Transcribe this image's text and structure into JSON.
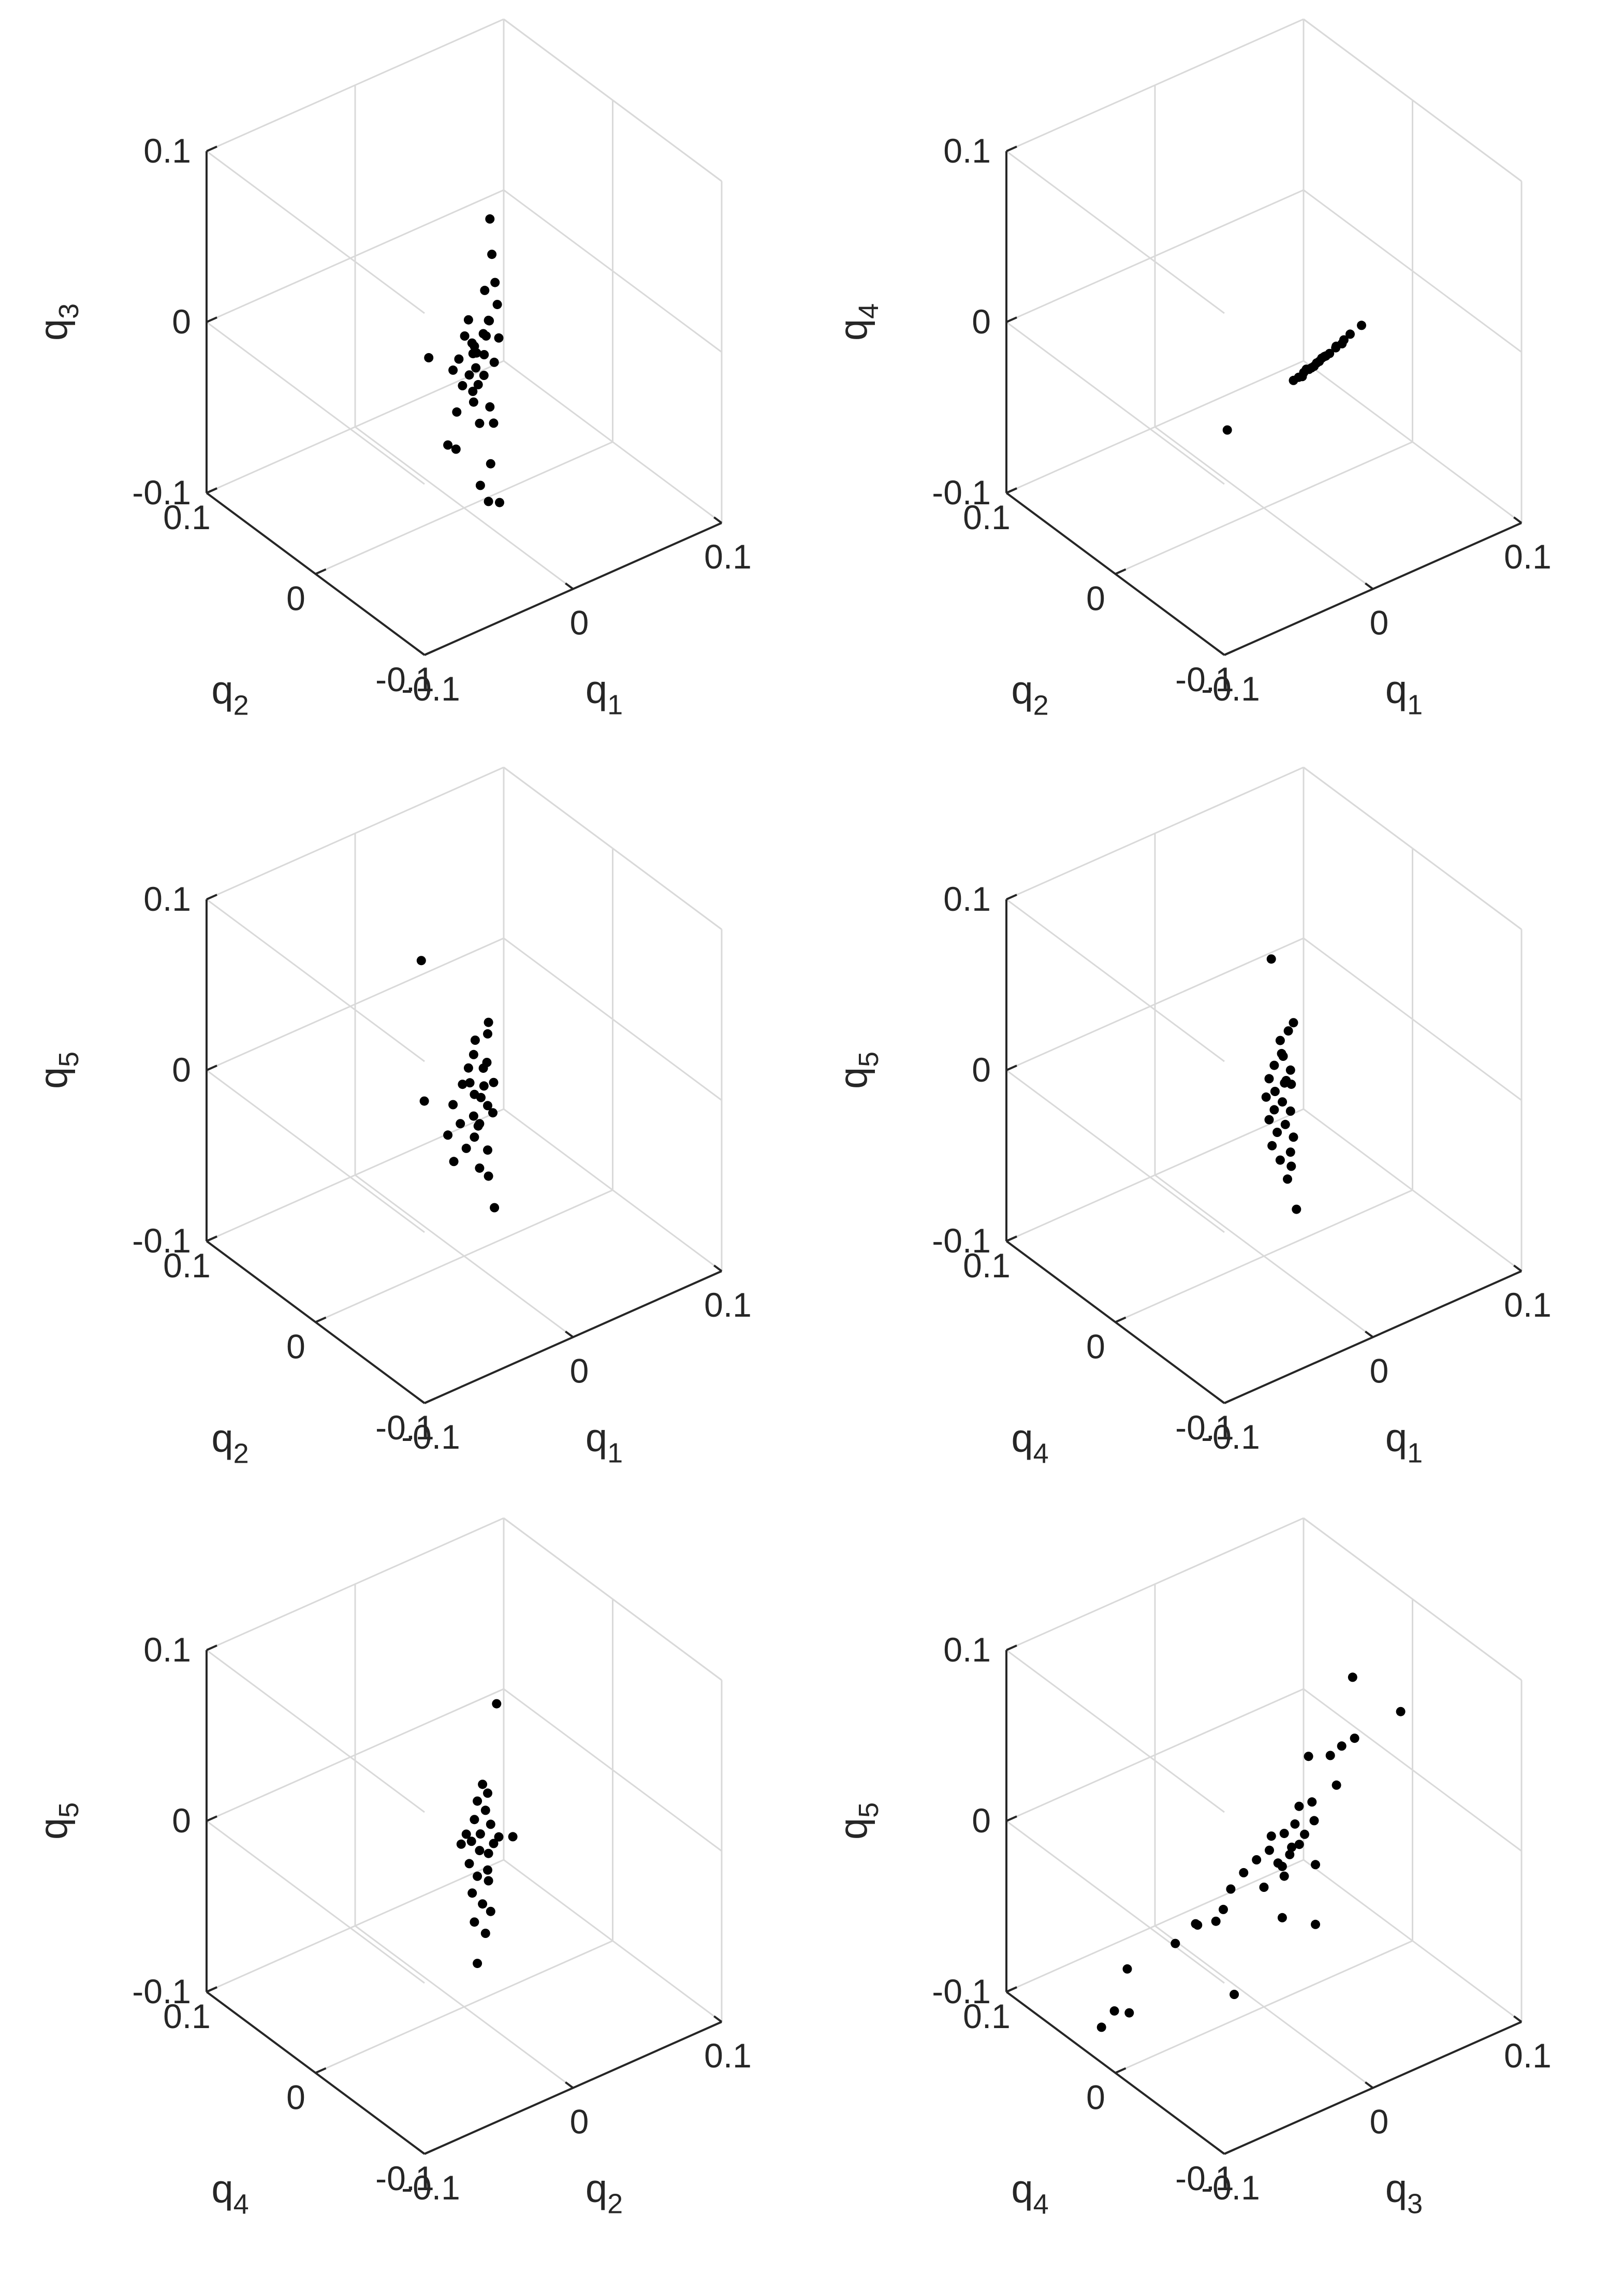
{
  "chart_data": [
    {
      "type": "scatter3d",
      "axes": {
        "x": "q1",
        "y": "q2",
        "z": "q3"
      },
      "labels": {
        "x": {
          "base": "q",
          "sub": "1"
        },
        "y": {
          "base": "q",
          "sub": "2"
        },
        "z": {
          "base": "q",
          "sub": "3"
        }
      },
      "xlim": [
        -0.1,
        0.1
      ],
      "ylim": [
        -0.1,
        0.1
      ],
      "zlim": [
        -0.1,
        0.1
      ],
      "ticks": [
        "-0.1",
        "0",
        "0.1"
      ],
      "grid": true,
      "points": [
        [
          0.01,
          -0.01,
          0.07
        ],
        [
          0.015,
          -0.005,
          0.045
        ],
        [
          0.012,
          -0.012,
          0.033
        ],
        [
          0.008,
          -0.008,
          0.028
        ],
        [
          0.015,
          -0.01,
          0.018
        ],
        [
          0.0,
          -0.004,
          0.012
        ],
        [
          0.012,
          -0.006,
          0.008
        ],
        [
          -0.004,
          -0.006,
          0.005
        ],
        [
          0.006,
          -0.012,
          0.004
        ],
        [
          0.01,
          -0.004,
          0.0
        ],
        [
          0.016,
          -0.01,
          -0.002
        ],
        [
          -0.015,
          0.012,
          -0.012
        ],
        [
          0.004,
          -0.004,
          -0.005
        ],
        [
          -0.005,
          -0.002,
          -0.01
        ],
        [
          0.012,
          -0.002,
          -0.014
        ],
        [
          0.002,
          -0.008,
          -0.015
        ],
        [
          -0.006,
          0.002,
          -0.018
        ],
        [
          0.006,
          -0.01,
          -0.02
        ],
        [
          -0.004,
          -0.004,
          -0.025
        ],
        [
          0.008,
          -0.002,
          -0.03
        ],
        [
          0.002,
          -0.006,
          -0.036
        ],
        [
          0.01,
          -0.01,
          -0.04
        ],
        [
          -0.002,
          0.004,
          -0.045
        ],
        [
          0.006,
          -0.006,
          -0.05
        ],
        [
          0.014,
          -0.008,
          -0.052
        ],
        [
          -0.008,
          0.004,
          -0.062
        ],
        [
          -0.004,
          0.002,
          -0.065
        ],
        [
          0.012,
          -0.008,
          -0.075
        ],
        [
          0.008,
          -0.004,
          -0.088
        ],
        [
          0.012,
          -0.006,
          -0.098
        ],
        [
          0.018,
          -0.008,
          -0.1
        ],
        [
          0.004,
          -0.006,
          -0.008
        ],
        [
          -0.002,
          -0.01,
          0.002
        ],
        [
          0.01,
          -0.014,
          -0.012
        ],
        [
          0.002,
          -0.002,
          -0.022
        ],
        [
          0.014,
          -0.004,
          0.006
        ],
        [
          0.0,
          -0.008,
          -0.028
        ],
        [
          0.006,
          0.0,
          -0.012
        ]
      ]
    },
    {
      "type": "scatter3d",
      "axes": {
        "x": "q1",
        "y": "q2",
        "z": "q4"
      },
      "labels": {
        "x": {
          "base": "q",
          "sub": "1"
        },
        "y": {
          "base": "q",
          "sub": "2"
        },
        "z": {
          "base": "q",
          "sub": "4"
        }
      },
      "xlim": [
        -0.1,
        0.1
      ],
      "ylim": [
        -0.1,
        0.1
      ],
      "zlim": [
        -0.1,
        0.1
      ],
      "ticks": [
        "-0.1",
        "0",
        "0.1"
      ],
      "grid": true,
      "points": [
        [
          0.04,
          -0.035,
          0.008
        ],
        [
          0.036,
          -0.03,
          0.002
        ],
        [
          0.032,
          -0.028,
          -0.003
        ],
        [
          0.03,
          -0.025,
          -0.006
        ],
        [
          0.028,
          -0.022,
          -0.01
        ],
        [
          0.026,
          -0.02,
          -0.012
        ],
        [
          0.024,
          -0.018,
          -0.015
        ],
        [
          0.022,
          -0.016,
          -0.018
        ],
        [
          0.02,
          -0.014,
          -0.02
        ],
        [
          0.018,
          -0.012,
          -0.022
        ],
        [
          0.016,
          -0.01,
          -0.025
        ],
        [
          0.014,
          -0.008,
          -0.027
        ],
        [
          0.034,
          -0.027,
          -0.002
        ],
        [
          0.027,
          -0.02,
          -0.012
        ],
        [
          0.023,
          -0.017,
          -0.016
        ],
        [
          0.019,
          -0.013,
          -0.02
        ],
        [
          0.031,
          -0.024,
          -0.006
        ],
        [
          0.025,
          -0.019,
          -0.013
        ],
        [
          0.021,
          -0.015,
          -0.019
        ],
        [
          0.017,
          -0.012,
          -0.024
        ],
        [
          -0.01,
          0.02,
          -0.06
        ]
      ]
    },
    {
      "type": "scatter3d",
      "axes": {
        "x": "q1",
        "y": "q2",
        "z": "q5"
      },
      "labels": {
        "x": {
          "base": "q",
          "sub": "1"
        },
        "y": {
          "base": "q",
          "sub": "2"
        },
        "z": {
          "base": "q",
          "sub": "5"
        }
      },
      "xlim": [
        -0.1,
        0.1
      ],
      "ylim": [
        -0.1,
        0.1
      ],
      "zlim": [
        -0.1,
        0.1
      ],
      "ticks": [
        "-0.1",
        "0",
        "0.1"
      ],
      "grid": true,
      "points": [
        [
          -0.02,
          0.012,
          0.075
        ],
        [
          0.012,
          -0.006,
          0.035
        ],
        [
          0.01,
          -0.008,
          0.03
        ],
        [
          0.006,
          -0.002,
          0.025
        ],
        [
          0.002,
          -0.006,
          0.02
        ],
        [
          0.008,
          -0.01,
          0.015
        ],
        [
          0.0,
          -0.004,
          0.012
        ],
        [
          0.01,
          -0.004,
          0.008
        ],
        [
          -0.004,
          -0.004,
          0.004
        ],
        [
          0.006,
          -0.01,
          0.002
        ],
        [
          0.014,
          -0.008,
          0.0
        ],
        [
          -0.018,
          0.012,
          -0.008
        ],
        [
          0.004,
          -0.004,
          -0.005
        ],
        [
          -0.006,
          0.002,
          -0.01
        ],
        [
          0.01,
          -0.008,
          -0.012
        ],
        [
          0.002,
          -0.006,
          -0.016
        ],
        [
          -0.004,
          -0.002,
          -0.02
        ],
        [
          0.006,
          -0.006,
          -0.022
        ],
        [
          -0.008,
          0.004,
          -0.028
        ],
        [
          0.004,
          -0.004,
          -0.03
        ],
        [
          0.0,
          -0.002,
          -0.036
        ],
        [
          0.01,
          -0.008,
          -0.038
        ],
        [
          -0.004,
          0.004,
          -0.045
        ],
        [
          0.006,
          -0.006,
          -0.048
        ],
        [
          0.012,
          -0.006,
          -0.055
        ],
        [
          0.016,
          -0.006,
          -0.075
        ],
        [
          0.004,
          -0.01,
          -0.004
        ],
        [
          -0.002,
          -0.008,
          0.006
        ],
        [
          0.008,
          -0.002,
          -0.026
        ],
        [
          0.012,
          -0.01,
          -0.016
        ]
      ]
    },
    {
      "type": "scatter3d",
      "axes": {
        "x": "q1",
        "y": "q4",
        "z": "q5"
      },
      "labels": {
        "x": {
          "base": "q",
          "sub": "1"
        },
        "y": {
          "base": "q",
          "sub": "4"
        },
        "z": {
          "base": "q",
          "sub": "5"
        }
      },
      "xlim": [
        -0.1,
        0.1
      ],
      "ylim": [
        -0.1,
        0.1
      ],
      "zlim": [
        -0.1,
        0.1
      ],
      "ticks": [
        "-0.1",
        "0",
        "0.1"
      ],
      "grid": true,
      "points": [
        [
          0.002,
          -0.004,
          0.075
        ],
        [
          0.014,
          -0.008,
          0.035
        ],
        [
          0.012,
          -0.006,
          0.03
        ],
        [
          0.008,
          -0.004,
          0.025
        ],
        [
          0.006,
          -0.008,
          0.02
        ],
        [
          0.01,
          -0.004,
          0.015
        ],
        [
          0.004,
          -0.004,
          0.012
        ],
        [
          0.012,
          -0.008,
          0.008
        ],
        [
          0.002,
          -0.002,
          0.004
        ],
        [
          0.008,
          -0.008,
          0.002
        ],
        [
          0.014,
          -0.006,
          -0.002
        ],
        [
          0.0,
          -0.002,
          -0.006
        ],
        [
          0.008,
          -0.006,
          -0.01
        ],
        [
          0.004,
          -0.004,
          -0.014
        ],
        [
          0.012,
          -0.008,
          -0.016
        ],
        [
          0.002,
          -0.002,
          -0.02
        ],
        [
          0.01,
          -0.006,
          -0.024
        ],
        [
          0.006,
          -0.004,
          -0.028
        ],
        [
          0.014,
          -0.008,
          -0.032
        ],
        [
          0.004,
          -0.002,
          -0.036
        ],
        [
          0.012,
          -0.008,
          -0.04
        ],
        [
          0.008,
          -0.004,
          -0.045
        ],
        [
          0.014,
          -0.006,
          -0.05
        ],
        [
          0.01,
          -0.008,
          -0.055
        ],
        [
          0.016,
          -0.008,
          -0.075
        ],
        [
          0.006,
          -0.002,
          -0.005
        ],
        [
          0.012,
          -0.004,
          0.0
        ]
      ]
    },
    {
      "type": "scatter3d",
      "axes": {
        "x": "q2",
        "y": "q4",
        "z": "q5"
      },
      "labels": {
        "x": {
          "base": "q",
          "sub": "2"
        },
        "y": {
          "base": "q",
          "sub": "4"
        },
        "z": {
          "base": "q",
          "sub": "5"
        }
      },
      "xlim": [
        -0.1,
        0.1
      ],
      "ylim": [
        -0.1,
        0.1
      ],
      "zlim": [
        -0.1,
        0.1
      ],
      "ticks": [
        "-0.1",
        "0",
        "0.1"
      ],
      "grid": true,
      "points": [
        [
          0.016,
          -0.008,
          0.075
        ],
        [
          0.008,
          -0.006,
          0.03
        ],
        [
          0.01,
          -0.008,
          0.025
        ],
        [
          0.006,
          -0.004,
          0.02
        ],
        [
          0.01,
          -0.006,
          0.014
        ],
        [
          0.004,
          -0.004,
          0.01
        ],
        [
          0.012,
          -0.008,
          0.006
        ],
        [
          0.0,
          -0.002,
          0.002
        ],
        [
          0.008,
          -0.004,
          0.0
        ],
        [
          0.016,
          -0.01,
          -0.002
        ],
        [
          0.024,
          -0.012,
          -0.004
        ],
        [
          -0.002,
          0.0,
          -0.004
        ],
        [
          0.006,
          -0.006,
          -0.008
        ],
        [
          0.012,
          -0.006,
          -0.012
        ],
        [
          0.002,
          -0.002,
          -0.016
        ],
        [
          0.01,
          -0.008,
          -0.02
        ],
        [
          0.006,
          -0.004,
          -0.024
        ],
        [
          0.012,
          -0.006,
          -0.028
        ],
        [
          0.004,
          -0.002,
          -0.034
        ],
        [
          0.008,
          -0.006,
          -0.04
        ],
        [
          0.012,
          -0.008,
          -0.045
        ],
        [
          0.004,
          -0.004,
          -0.05
        ],
        [
          0.01,
          -0.006,
          -0.058
        ],
        [
          0.006,
          -0.004,
          -0.075
        ],
        [
          0.014,
          -0.008,
          -0.006
        ],
        [
          0.002,
          -0.004,
          -0.002
        ]
      ]
    },
    {
      "type": "scatter3d",
      "axes": {
        "x": "q3",
        "y": "q4",
        "z": "q5"
      },
      "labels": {
        "x": {
          "base": "q",
          "sub": "3"
        },
        "y": {
          "base": "q",
          "sub": "4"
        },
        "z": {
          "base": "q",
          "sub": "5"
        }
      },
      "xlim": [
        -0.1,
        0.1
      ],
      "ylim": [
        -0.1,
        0.1
      ],
      "zlim": [
        -0.1,
        0.1
      ],
      "ticks": [
        "-0.1",
        "0",
        "0.1"
      ],
      "grid": true,
      "points": [
        [
          0.07,
          -0.03,
          0.06
        ],
        [
          0.045,
          -0.02,
          0.085
        ],
        [
          0.05,
          -0.015,
          0.045
        ],
        [
          0.045,
          -0.01,
          0.04
        ],
        [
          0.03,
          -0.02,
          0.045
        ],
        [
          0.04,
          -0.012,
          0.02
        ],
        [
          0.03,
          0.0,
          0.035
        ],
        [
          0.025,
          -0.01,
          0.015
        ],
        [
          0.02,
          -0.005,
          0.012
        ],
        [
          0.025,
          -0.012,
          0.005
        ],
        [
          0.015,
          -0.008,
          0.005
        ],
        [
          0.02,
          -0.01,
          -0.002
        ],
        [
          0.01,
          -0.005,
          0.0
        ],
        [
          0.005,
          0.0,
          -0.002
        ],
        [
          0.015,
          -0.012,
          -0.005
        ],
        [
          0.0,
          -0.005,
          -0.006
        ],
        [
          0.01,
          -0.01,
          -0.01
        ],
        [
          -0.005,
          0.0,
          -0.012
        ],
        [
          0.005,
          -0.01,
          -0.015
        ],
        [
          0.02,
          -0.02,
          -0.015
        ],
        [
          -0.01,
          0.005,
          -0.02
        ],
        [
          0.01,
          -0.005,
          -0.025
        ],
        [
          -0.015,
          0.01,
          -0.03
        ],
        [
          0.0,
          0.0,
          -0.03
        ],
        [
          -0.02,
          0.01,
          -0.04
        ],
        [
          -0.025,
          0.01,
          -0.045
        ],
        [
          0.005,
          -0.01,
          -0.045
        ],
        [
          -0.035,
          0.015,
          -0.045
        ],
        [
          -0.03,
          0.02,
          -0.05
        ],
        [
          -0.045,
          0.02,
          -0.055
        ],
        [
          -0.07,
          0.03,
          -0.065
        ],
        [
          0.02,
          -0.02,
          -0.05
        ],
        [
          -0.075,
          0.035,
          -0.09
        ],
        [
          -0.065,
          0.035,
          -0.095
        ],
        [
          -0.08,
          0.04,
          -0.1
        ],
        [
          -0.02,
          0.0,
          -0.085
        ],
        [
          0.015,
          -0.005,
          -0.01
        ],
        [
          0.008,
          -0.002,
          -0.018
        ]
      ]
    }
  ]
}
